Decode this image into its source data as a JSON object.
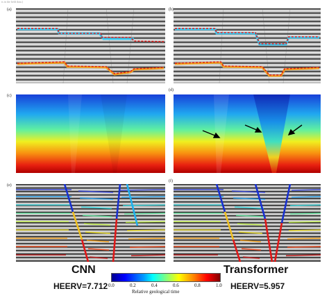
{
  "caption_fragment": "ts in the field data.)",
  "panels": {
    "a": "(a)",
    "b": "(b)",
    "c": "(c)",
    "d": "(d)",
    "e": "(e)",
    "f": "(f)"
  },
  "left_model": "CNN",
  "right_model": "Transformer",
  "left_metric": "HEERV=7.712",
  "right_metric": "HEERV=5.957",
  "colorbar": {
    "ticks": [
      "0.0",
      "0.2",
      "0.4",
      "0.6",
      "0.8",
      "1.0"
    ],
    "title": "Relative geological time"
  },
  "colors": {
    "horizon_cyan": "#38c8f0",
    "horizon_orange": "#f0a020",
    "fault_red": "#e01818",
    "fault_blue": "#1830d0"
  }
}
